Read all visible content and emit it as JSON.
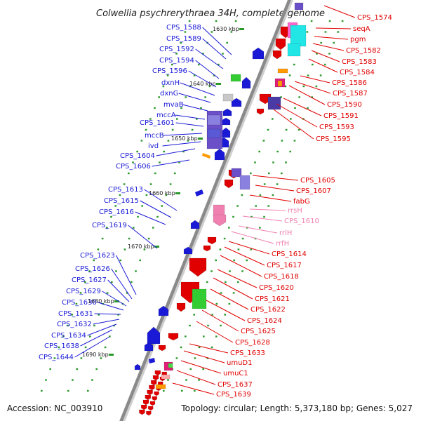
{
  "title": "Colwellia psychrerythraea 34H, complete genome",
  "accession": "Accession: NC_003910",
  "topology": "Topology: circular; Length: 5,373,180 bp; Genes: 5,027",
  "colors": {
    "backbone": "#8a8a8a",
    "left_gene": "#1a1ad6",
    "right_gene": "#e00000",
    "rna_gene": "#f080b0",
    "tick": "#2a9a2a"
  },
  "kbp_marks": [
    "1630 kbp",
    "1640 kbp",
    "1650 kbp",
    "1660 kbp",
    "1670 kbp",
    "1680 kbp",
    "1690 kbp"
  ],
  "left_labels": [
    "CPS_1588",
    "CPS_1589",
    "CPS_1592",
    "CPS_1594",
    "CPS_1596",
    "dxnH",
    "dxnG",
    "mvaB",
    "mccA",
    "CPS_1601",
    "mccB",
    "ivd",
    "CPS_1604",
    "CPS_1606",
    "CPS_1613",
    "CPS_1615",
    "CPS_1616",
    "CPS_1619",
    "CPS_1623",
    "CPS_1626",
    "CPS_1627",
    "CPS_1629",
    "CPS_1630",
    "CPS_1631",
    "CPS_1632",
    "CPS_1634",
    "CPS_1638",
    "CPS_1644"
  ],
  "right_labels": [
    "CPS_1574",
    "seqA",
    "pgm",
    "CPS_1582",
    "CPS_1583",
    "CPS_1584",
    "CPS_1586",
    "CPS_1587",
    "CPS_1590",
    "CPS_1591",
    "CPS_1593",
    "CPS_1595",
    "CPS_1605",
    "CPS_1607",
    "fabG",
    "rrsH",
    "CPS_1610",
    "rrlH",
    "rrfH",
    "CPS_1614",
    "CPS_1617",
    "CPS_1618",
    "CPS_1620",
    "CPS_1621",
    "CPS_1622",
    "CPS_1624",
    "CPS_1625",
    "CPS_1628",
    "CPS_1633",
    "umuD1",
    "umuC1",
    "CPS_1637",
    "CPS_1639"
  ]
}
